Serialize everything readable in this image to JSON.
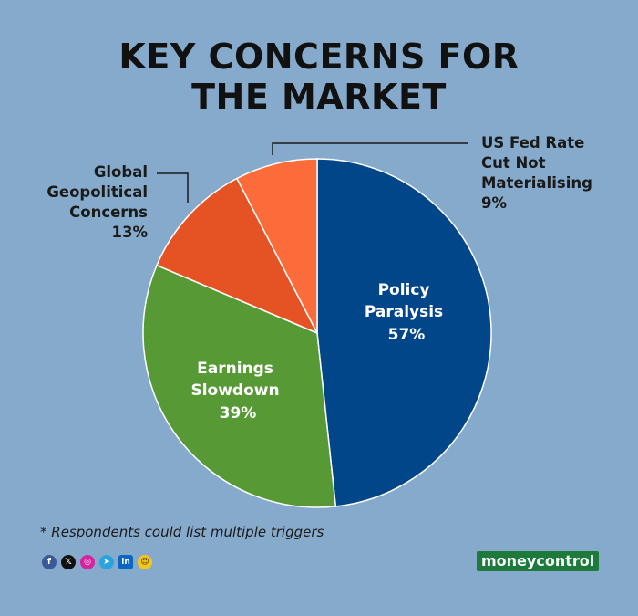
{
  "title_line1": "KEY CONCERNS FOR",
  "title_line2": "THE MARKET",
  "chart_data": {
    "type": "pie",
    "title": "KEY CONCERNS FOR THE MARKET",
    "slices": [
      {
        "label": "Policy Paralysis",
        "value": 57,
        "display": "57%",
        "color": "#02468a"
      },
      {
        "label": "Earnings Slowdown",
        "value": 39,
        "display": "39%",
        "color": "#579a35"
      },
      {
        "label": "Global Geopolitical Concerns",
        "value": 13,
        "display": "13%",
        "color": "#e55325"
      },
      {
        "label": "US Fed Rate Cut Not Materialising",
        "value": 9,
        "display": "9%",
        "color": "#fb6c3a"
      }
    ]
  },
  "labels": {
    "policy": [
      "Policy",
      "Paralysis",
      "57%"
    ],
    "earnings": [
      "Earnings",
      "Slowdown",
      "39%"
    ],
    "global": [
      "Global",
      "Geopolitical",
      "Concerns",
      "13%"
    ],
    "fed": [
      "US Fed Rate",
      "Cut Not",
      "Materialising",
      "9%"
    ]
  },
  "footnote": "* Respondents could list multiple triggers",
  "social_icons": [
    "facebook-icon",
    "x-icon",
    "instagram-icon",
    "telegram-icon",
    "linkedin-icon",
    "snapchat-icon"
  ],
  "brand": {
    "part1": "money",
    "part2": "control"
  },
  "colors": {
    "background": "#86aacb",
    "brand_green": "#1e7a3c"
  }
}
